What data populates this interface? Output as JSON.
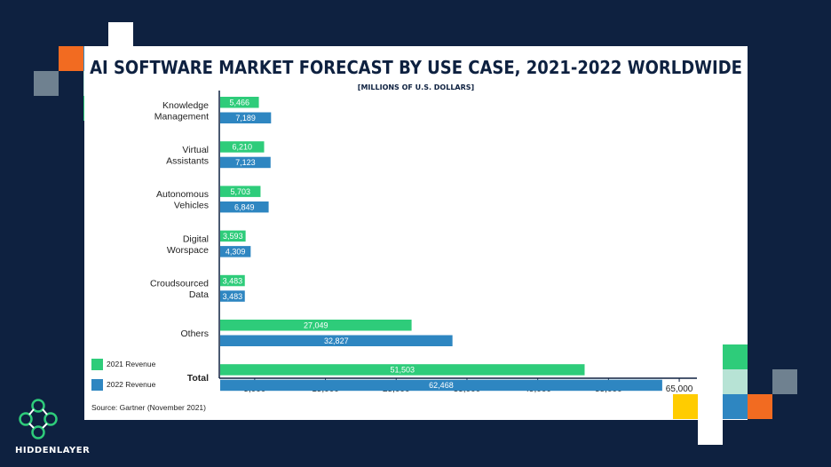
{
  "colors": {
    "background": "#0e2140",
    "panel": "#ffffff",
    "series_2021": "#2ecc7a",
    "series_2022": "#2e86c1",
    "accent_orange": "#f26b21",
    "accent_blue": "#2e86c1",
    "accent_green": "#2ecc7a",
    "accent_mint": "#b7e3d5",
    "accent_gray": "#6f8190",
    "accent_yellow": "#ffcc00"
  },
  "brand": {
    "logo_text": "HIDDENLAYER",
    "logo_icon": "hexagon-network-icon"
  },
  "source_note": "Source: Gartner (November 2021)",
  "chart_data": {
    "type": "bar",
    "orientation": "horizontal",
    "title": "AI SOFTWARE MARKET FORECAST BY USE CASE, 2021-2022 WORLDWIDE",
    "subtitle": "[MILLIONS OF U.S. DOLLARS]",
    "categories": [
      [
        "Knowledge",
        "Management"
      ],
      [
        "Virtual",
        "Assistants"
      ],
      [
        "Autonomous",
        "Vehicles"
      ],
      [
        "Digital",
        "Worspace"
      ],
      [
        "Croudsourced",
        "Data"
      ],
      [
        "Others"
      ],
      [
        "Total"
      ]
    ],
    "series": [
      {
        "name": "2021 Revenue",
        "color": "#2ecc7a",
        "values": [
          5466,
          6210,
          5703,
          3593,
          3483,
          27049,
          51503
        ],
        "labels": [
          "5,466",
          "6,210",
          "5,703",
          "3,593",
          "3,483",
          "27,049",
          "51,503"
        ]
      },
      {
        "name": "2022 Revenue",
        "color": "#2e86c1",
        "values": [
          7189,
          7123,
          6849,
          4309,
          3483,
          32827,
          62468
        ],
        "labels": [
          "7,189",
          "7,123",
          "6,849",
          "4,309",
          "3,483",
          "32,827",
          "62,468"
        ]
      }
    ],
    "x_ticks": [
      5000,
      15000,
      25000,
      35000,
      45000,
      55000,
      65000
    ],
    "x_tick_labels": [
      "5,000",
      "15,000",
      "25,000",
      "35,000",
      "45,000",
      "55,000",
      "65,000"
    ],
    "xlim": [
      0,
      67500
    ],
    "grid": false,
    "legend_position": "bottom-left"
  }
}
